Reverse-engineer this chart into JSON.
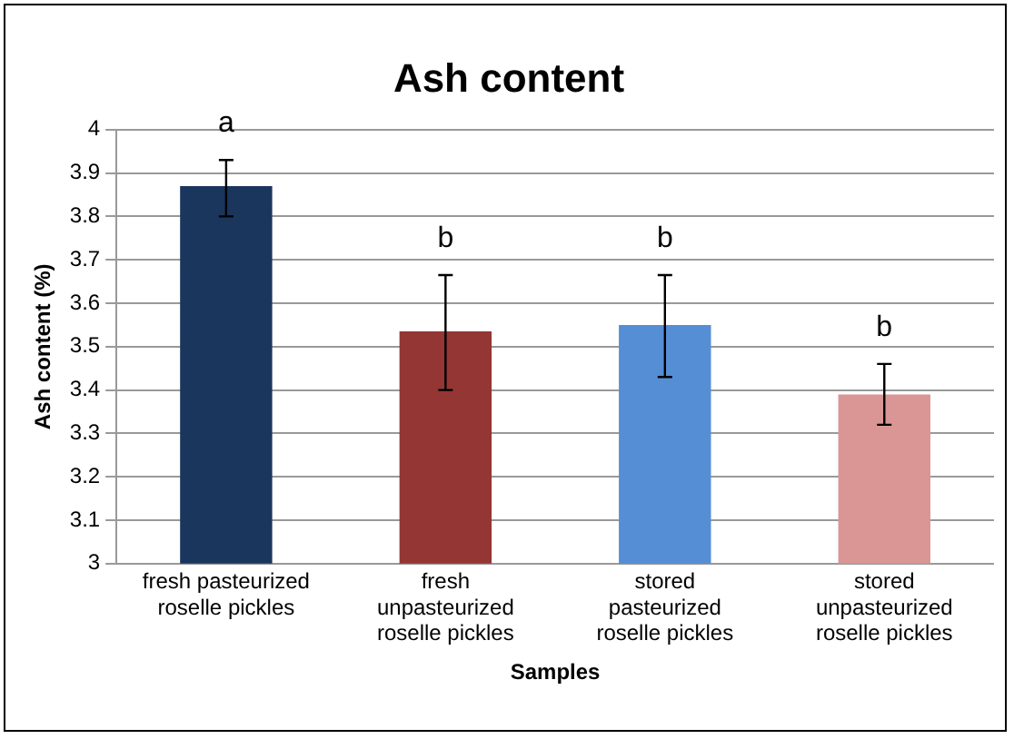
{
  "chart_data": {
    "type": "bar",
    "title": "Ash content",
    "xlabel": "Samples",
    "ylabel": "Ash content (%)",
    "categories": [
      "fresh pasteurized\nroselle pickles",
      "fresh\nunpasteurized\nroselle pickles",
      "stored\npasteurized\nroselle pickles",
      "stored\nunpasteurized\nroselle pickles"
    ],
    "values": [
      3.87,
      3.535,
      3.55,
      3.39
    ],
    "colors": [
      "#1b365d",
      "#943634",
      "#558ed5",
      "#d99694"
    ],
    "errors": [
      [
        3.8,
        3.93
      ],
      [
        3.4,
        3.665
      ],
      [
        3.43,
        3.665
      ],
      [
        3.32,
        3.46
      ]
    ],
    "ylim": [
      3,
      4
    ],
    "yticks": [
      3,
      3.1,
      3.2,
      3.3,
      3.4,
      3.5,
      3.6,
      3.7,
      3.8,
      3.9,
      4
    ],
    "grid": "y",
    "legend": false,
    "annotations": [
      "a",
      "b",
      "b",
      "b"
    ]
  }
}
